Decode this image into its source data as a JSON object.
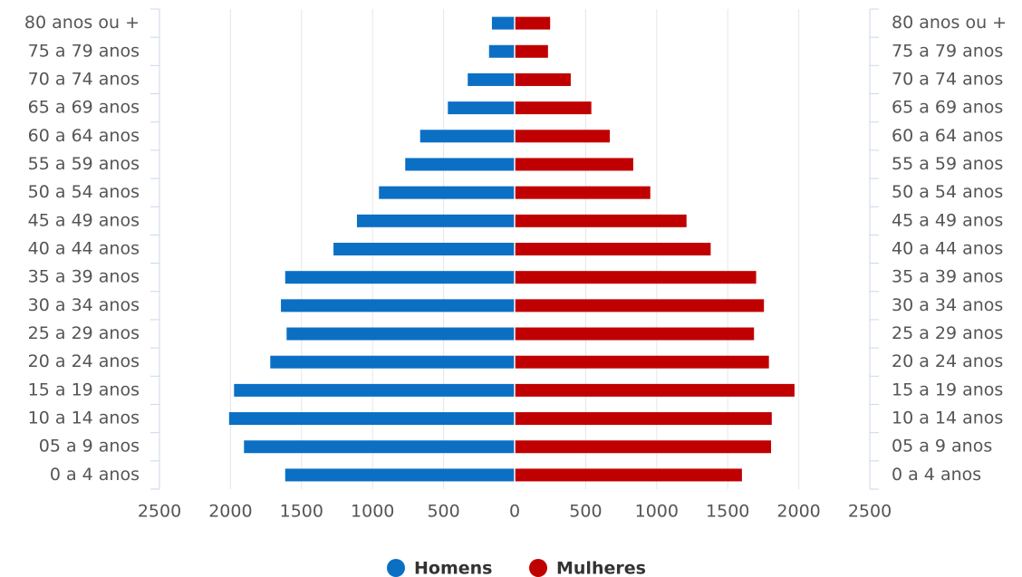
{
  "chart_data": {
    "type": "pyramid",
    "categories": [
      "80 anos ou +",
      "75 a 79 anos",
      "70 a 74 anos",
      "65 a 69 anos",
      "60 a 64 anos",
      "55 a 59 anos",
      "50 a 54 anos",
      "45 a 49 anos",
      "40 a 44 anos",
      "35 a 39 anos",
      "30 a 34 anos",
      "25 a 29 anos",
      "20 a 24 anos",
      "15 a 19 anos",
      "10 a 14 anos",
      "05 a 9 anos",
      "0 a 4 anos"
    ],
    "series": [
      {
        "name": "Homens",
        "color": "#0b6fc4",
        "values": [
          -160,
          -180,
          -330,
          -470,
          -665,
          -770,
          -955,
          -1110,
          -1275,
          -1615,
          -1645,
          -1605,
          -1720,
          -1975,
          -2010,
          -1905,
          -1615
        ]
      },
      {
        "name": "Mulheres",
        "color": "#c00000",
        "values": [
          250,
          235,
          395,
          540,
          670,
          835,
          955,
          1210,
          1380,
          1700,
          1755,
          1685,
          1790,
          1970,
          1810,
          1805,
          1600
        ]
      }
    ],
    "xlim": [
      -2500,
      2500
    ],
    "xticks": [
      {
        "value": -2500,
        "label": "2500"
      },
      {
        "value": -2000,
        "label": "2000"
      },
      {
        "value": -1500,
        "label": "1500"
      },
      {
        "value": -1000,
        "label": "1000"
      },
      {
        "value": -500,
        "label": "500"
      },
      0,
      500,
      1000,
      1500,
      2000,
      2500
    ],
    "grid": true,
    "legend": "bottom"
  }
}
